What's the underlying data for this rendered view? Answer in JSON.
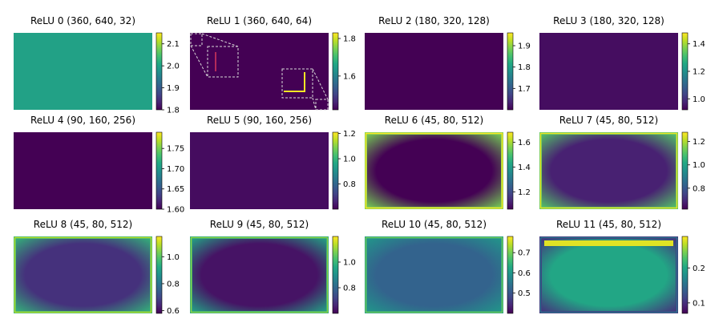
{
  "chart_data": [
    {
      "type": "heatmap",
      "title": "ReLU 0 (360, 640, 32)",
      "uniform_value": 2.0,
      "colorbar": {
        "range": [
          1.8,
          2.15
        ],
        "ticks": [
          {
            "v": 2.1,
            "label": "2.1"
          },
          {
            "v": 2.0,
            "label": "2.0"
          },
          {
            "v": 1.9,
            "label": "1.9"
          },
          {
            "v": 1.8,
            "label": "1.8"
          }
        ]
      }
    },
    {
      "type": "heatmap",
      "title": "ReLU 1 (360, 640, 64)",
      "uniform_value": 1.42,
      "colorbar": {
        "range": [
          1.42,
          1.83
        ],
        "ticks": [
          {
            "v": 1.8,
            "label": "1.8"
          },
          {
            "v": 1.6,
            "label": "1.6"
          }
        ]
      },
      "zoom_insets": true
    },
    {
      "type": "heatmap",
      "title": "ReLU 2 (180, 320, 128)",
      "uniform_value": 1.6,
      "colorbar": {
        "range": [
          1.6,
          1.96
        ],
        "ticks": [
          {
            "v": 1.9,
            "label": "1.9"
          },
          {
            "v": 1.8,
            "label": "1.8"
          },
          {
            "v": 1.7,
            "label": "1.7"
          }
        ]
      }
    },
    {
      "type": "heatmap",
      "title": "ReLU 3 (180, 320, 128)",
      "uniform_value": 0.94,
      "colorbar": {
        "range": [
          0.92,
          1.48
        ],
        "ticks": [
          {
            "v": 1.4,
            "label": "1.4"
          },
          {
            "v": 1.2,
            "label": "1.2"
          },
          {
            "v": 1.0,
            "label": "1.0"
          }
        ]
      }
    },
    {
      "type": "heatmap",
      "title": "ReLU 4 (90, 160, 256)",
      "uniform_value": 1.6,
      "colorbar": {
        "range": [
          1.6,
          1.79
        ],
        "ticks": [
          {
            "v": 1.75,
            "label": "1.75"
          },
          {
            "v": 1.7,
            "label": "1.70"
          },
          {
            "v": 1.65,
            "label": "1.65"
          },
          {
            "v": 1.6,
            "label": "1.60"
          }
        ]
      }
    },
    {
      "type": "heatmap",
      "title": "ReLU 5 (90, 160, 256)",
      "uniform_value": 0.62,
      "colorbar": {
        "range": [
          0.6,
          1.21
        ],
        "ticks": [
          {
            "v": 1.2,
            "label": "1.2"
          },
          {
            "v": 1.0,
            "label": "1.0"
          },
          {
            "v": 0.8,
            "label": "0.8"
          }
        ]
      }
    },
    {
      "type": "heatmap",
      "title": "ReLU 6 (45, 80, 512)",
      "center_value": 1.06,
      "edge_value": 1.55,
      "colorbar": {
        "range": [
          1.06,
          1.68
        ],
        "ticks": [
          {
            "v": 1.6,
            "label": "1.6"
          },
          {
            "v": 1.4,
            "label": "1.4"
          },
          {
            "v": 1.2,
            "label": "1.2"
          }
        ]
      }
    },
    {
      "type": "heatmap",
      "title": "ReLU 7 (45, 80, 512)",
      "center_value": 0.68,
      "edge_value": 1.1,
      "colorbar": {
        "range": [
          0.62,
          1.28
        ],
        "ticks": [
          {
            "v": 1.2,
            "label": "1.2"
          },
          {
            "v": 1.0,
            "label": "1.0"
          },
          {
            "v": 0.8,
            "label": "0.8"
          }
        ]
      }
    },
    {
      "type": "heatmap",
      "title": "ReLU 8 (45, 80, 512)",
      "center_value": 0.66,
      "edge_value": 0.95,
      "colorbar": {
        "range": [
          0.58,
          1.15
        ],
        "ticks": [
          {
            "v": 1.0,
            "label": "1.0"
          },
          {
            "v": 0.8,
            "label": "0.8"
          },
          {
            "v": 0.6,
            "label": "0.6"
          }
        ]
      }
    },
    {
      "type": "heatmap",
      "title": "ReLU 9 (45, 80, 512)",
      "center_value": 0.63,
      "edge_value": 0.95,
      "colorbar": {
        "range": [
          0.6,
          1.2
        ],
        "ticks": [
          {
            "v": 1.0,
            "label": "1.0"
          },
          {
            "v": 0.8,
            "label": "0.8"
          }
        ]
      }
    },
    {
      "type": "heatmap",
      "title": "ReLU 10 (45, 80, 512)",
      "center_value": 0.52,
      "edge_value": 0.6,
      "colorbar": {
        "range": [
          0.4,
          0.78
        ],
        "ticks": [
          {
            "v": 0.7,
            "label": "0.7"
          },
          {
            "v": 0.6,
            "label": "0.6"
          },
          {
            "v": 0.5,
            "label": "0.5"
          }
        ]
      }
    },
    {
      "type": "heatmap",
      "title": "ReLU 11 (45, 80, 512)",
      "center_value": 0.2,
      "edge_value": 0.1,
      "top_band_value": 0.28,
      "colorbar": {
        "range": [
          0.07,
          0.29
        ],
        "ticks": [
          {
            "v": 0.2,
            "label": "0.2"
          },
          {
            "v": 0.1,
            "label": "0.1"
          }
        ]
      }
    }
  ]
}
